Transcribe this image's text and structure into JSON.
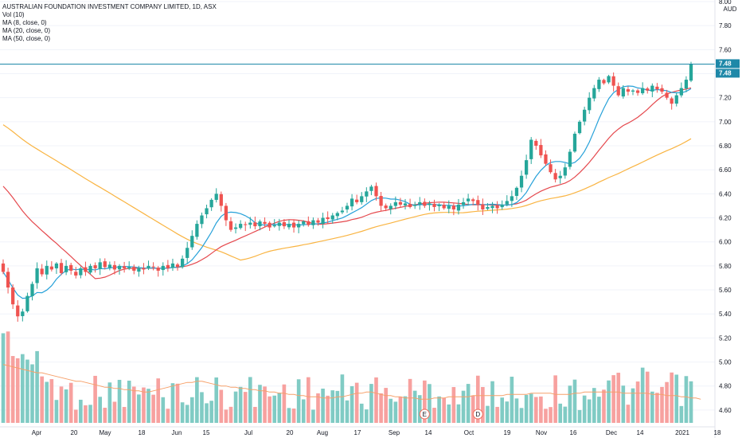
{
  "legend": {
    "title": "AUSTRALIAN FOUNDATION INVESTMENT COMPANY LIMITED, 1D, ASX",
    "indicators": [
      "Vol (10)",
      "MA (8, close, 0)",
      "MA (20, close, 0)",
      "MA (50, close, 0)"
    ]
  },
  "currency": "AUD",
  "colors": {
    "up": "#26a69a",
    "down": "#ef5350",
    "vol_up": "#80cbc4",
    "vol_down": "#f7a19f",
    "ma8": "#26a1d9",
    "ma20": "#e5484d",
    "ma50": "#f9b442",
    "vol_ma": "#f6a06a",
    "last_line": "#1e88a8",
    "marker": "#ef6c5a"
  },
  "chart_data": {
    "type": "candlestick",
    "ylim": [
      4.5,
      8.0
    ],
    "yticks": [
      "8.00",
      "7.80",
      "7.60",
      "7.40",
      "7.20",
      "7.00",
      "6.80",
      "6.60",
      "6.40",
      "6.20",
      "6.00",
      "5.80",
      "5.60",
      "5.40",
      "5.20",
      "5.00",
      "4.80",
      "4.60"
    ],
    "x_tick_labels": [
      "Apr",
      "20",
      "May",
      "18",
      "Jun",
      "15",
      "Jul",
      "20",
      "Aug",
      "17",
      "Sep",
      "14",
      "Oct",
      "19",
      "Nov",
      "16",
      "Dec",
      "14",
      "2021",
      "18"
    ],
    "last_price_labels": [
      "7.48",
      "7.48"
    ],
    "close": [
      5.75,
      5.62,
      5.48,
      5.38,
      5.42,
      5.55,
      5.65,
      5.78,
      5.73,
      5.8,
      5.77,
      5.82,
      5.74,
      5.8,
      5.76,
      5.72,
      5.78,
      5.75,
      5.8,
      5.78,
      5.83,
      5.79,
      5.81,
      5.77,
      5.8,
      5.78,
      5.79,
      5.76,
      5.78,
      5.77,
      5.8,
      5.79,
      5.76,
      5.8,
      5.78,
      5.82,
      5.79,
      5.86,
      5.95,
      6.05,
      6.15,
      6.22,
      6.28,
      6.35,
      6.4,
      6.3,
      6.18,
      6.1,
      6.12,
      6.15,
      6.14,
      6.16,
      6.13,
      6.17,
      6.15,
      6.12,
      6.14,
      6.16,
      6.13,
      6.15,
      6.12,
      6.15,
      6.17,
      6.14,
      6.18,
      6.16,
      6.2,
      6.19,
      6.22,
      6.24,
      6.26,
      6.3,
      6.36,
      6.33,
      6.38,
      6.42,
      6.46,
      6.38,
      6.3,
      6.28,
      6.3,
      6.33,
      6.31,
      6.32,
      6.29,
      6.31,
      6.33,
      6.3,
      6.32,
      6.29,
      6.31,
      6.28,
      6.3,
      6.27,
      6.31,
      6.33,
      6.36,
      6.34,
      6.31,
      6.27,
      6.29,
      6.3,
      6.28,
      6.31,
      6.34,
      6.38,
      6.45,
      6.55,
      6.68,
      6.85,
      6.8,
      6.72,
      6.65,
      6.58,
      6.52,
      6.55,
      6.62,
      6.75,
      6.9,
      7.0,
      7.1,
      7.2,
      7.28,
      7.35,
      7.32,
      7.38,
      7.3,
      7.22,
      7.28,
      7.25,
      7.26,
      7.24,
      7.28,
      7.26,
      7.3,
      7.27,
      7.25,
      7.2,
      7.15,
      7.22,
      7.28,
      7.35,
      7.48
    ],
    "volume_ma": [
      4.98,
      4.97,
      4.96,
      4.95,
      4.94,
      4.93,
      4.92,
      4.91,
      4.91,
      4.9,
      4.89,
      4.88,
      4.87,
      4.86,
      4.85,
      4.84,
      4.84,
      4.83,
      4.82,
      4.81,
      4.8,
      4.79,
      4.79,
      4.78,
      4.78,
      4.77,
      4.77,
      4.76,
      4.76,
      4.75,
      4.75,
      4.76,
      4.77,
      4.78,
      4.79,
      4.8,
      4.81,
      4.82,
      4.83,
      4.83,
      4.84,
      4.84,
      4.83,
      4.82,
      4.81,
      4.8,
      4.8,
      4.79,
      4.79,
      4.78,
      4.78,
      4.77,
      4.77,
      4.76,
      4.76,
      4.75,
      4.75,
      4.74,
      4.74,
      4.73,
      4.73,
      4.72,
      4.72,
      4.71,
      4.71,
      4.71,
      4.7,
      4.7,
      4.7,
      4.71,
      4.71,
      4.72,
      4.73,
      4.74,
      4.74,
      4.75,
      4.75,
      4.74,
      4.73,
      4.72,
      4.72,
      4.71,
      4.71,
      4.7,
      4.7,
      4.7,
      4.69,
      4.69,
      4.69,
      4.7,
      4.7,
      4.7,
      4.71,
      4.71,
      4.71,
      4.71,
      4.71,
      4.72,
      4.72,
      4.72,
      4.72,
      4.72,
      4.72,
      4.72,
      4.73,
      4.73,
      4.73,
      4.73,
      4.73,
      4.74,
      4.74,
      4.74,
      4.74,
      4.74,
      4.73,
      4.73,
      4.73,
      4.73,
      4.74,
      4.74,
      4.75,
      4.75,
      4.75,
      4.75,
      4.75,
      4.75,
      4.75,
      4.75,
      4.74,
      4.74,
      4.74,
      4.74,
      4.74,
      4.74,
      4.73,
      4.73,
      4.73,
      4.72,
      4.72,
      4.72,
      4.71,
      4.71,
      4.7,
      4.7,
      4.69
    ],
    "event_markers": [
      {
        "label": "E",
        "index": 87
      },
      {
        "label": "D",
        "index": 98
      }
    ]
  }
}
